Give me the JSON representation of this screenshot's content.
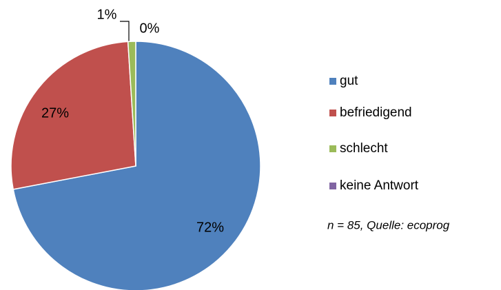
{
  "chart_data": {
    "type": "pie",
    "categories": [
      "gut",
      "befriedigend",
      "schlecht",
      "keine Antwort"
    ],
    "values": [
      72,
      27,
      1,
      0
    ],
    "value_labels": [
      "72%",
      "27%",
      "1%",
      "0%"
    ],
    "colors": [
      "#4f81bd",
      "#c0504d",
      "#9bbb59",
      "#8064a2"
    ],
    "legend": "right",
    "annotation": "n = 85, Quelle: ecoprog"
  }
}
